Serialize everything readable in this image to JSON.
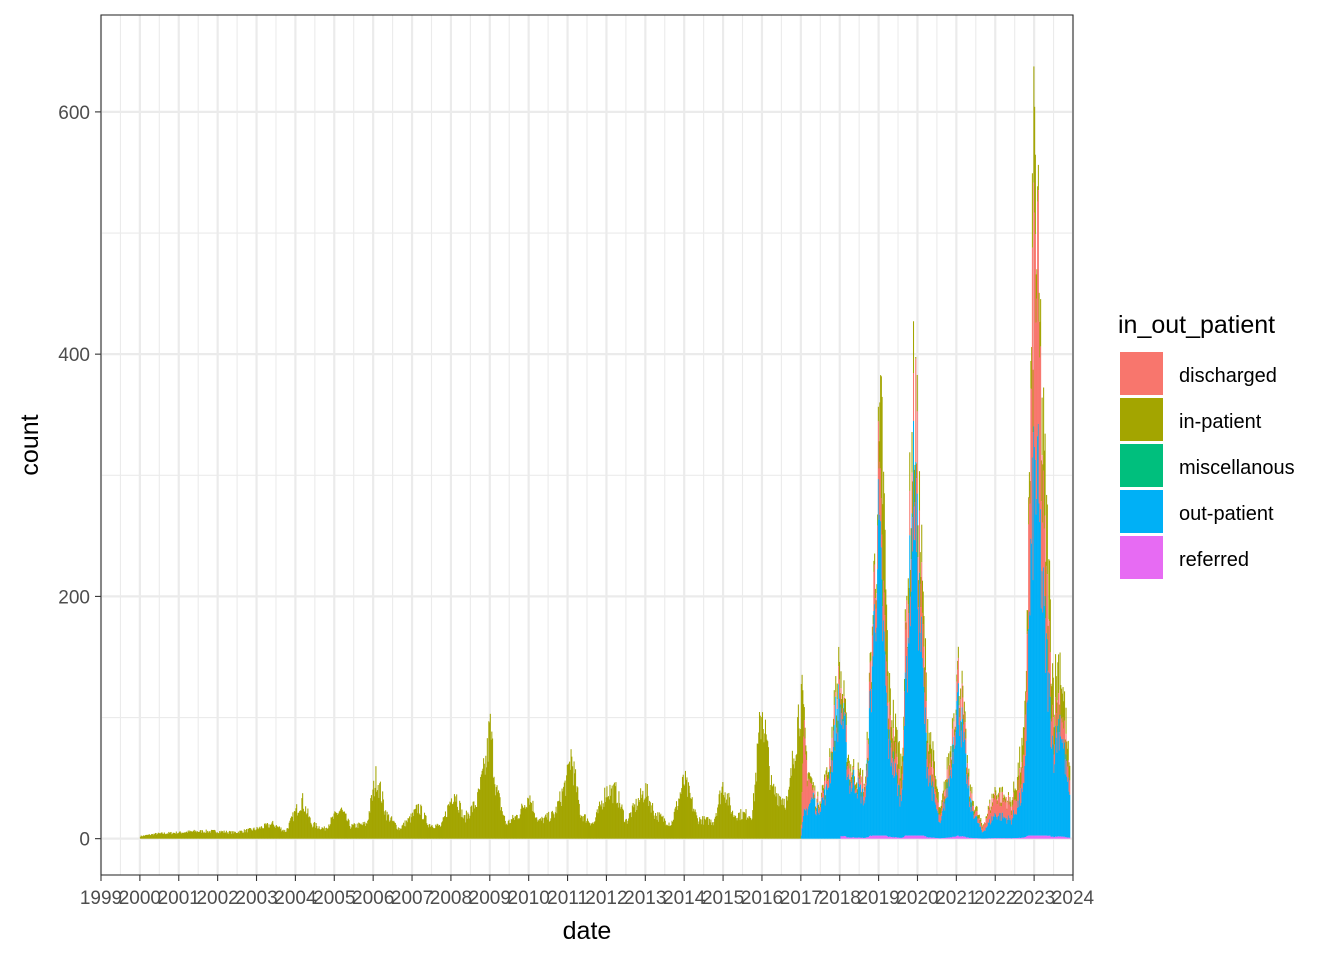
{
  "chart_data": {
    "type": "bar",
    "xlabel": "date",
    "ylabel": "count",
    "x_axis_kind": "date (weekly bins)",
    "xlim": [
      "1999-01-01",
      "2024-01-01"
    ],
    "x_ticks": [
      "1999",
      "2000",
      "2001",
      "2002",
      "2003",
      "2004",
      "2005",
      "2006",
      "2007",
      "2008",
      "2009",
      "2010",
      "2011",
      "2012",
      "2013",
      "2014",
      "2015",
      "2016",
      "2017",
      "2018",
      "2019",
      "2020",
      "2021",
      "2022",
      "2023",
      "2024"
    ],
    "ylim": [
      -30,
      680
    ],
    "y_ticks": [
      0,
      200,
      400,
      600
    ],
    "grid": true,
    "stacked": true,
    "legend": {
      "title": "in_out_patient",
      "placement": "right",
      "entries": [
        {
          "label": "discharged",
          "color": "#F8766D"
        },
        {
          "label": "in-patient",
          "color": "#A3A500"
        },
        {
          "label": "miscellanous",
          "color": "#00BF7D"
        },
        {
          "label": "out-patient",
          "color": "#00B0F6"
        },
        {
          "label": "referred",
          "color": "#E76BF3"
        }
      ]
    },
    "series_envelopes": [
      {
        "name": "in-patient",
        "note": "approximate stacked top of total (monthly)",
        "points": [
          [
            "2000-01",
            2
          ],
          [
            "2000-06",
            4
          ],
          [
            "2001-01",
            5
          ],
          [
            "2001-06",
            6
          ],
          [
            "2002-01",
            6
          ],
          [
            "2002-06",
            5
          ],
          [
            "2003-01",
            8
          ],
          [
            "2003-06",
            12
          ],
          [
            "2003-10",
            6
          ],
          [
            "2004-01",
            22
          ],
          [
            "2004-03",
            32
          ],
          [
            "2004-06",
            12
          ],
          [
            "2004-10",
            8
          ],
          [
            "2005-01",
            18
          ],
          [
            "2005-03",
            24
          ],
          [
            "2005-06",
            10
          ],
          [
            "2005-11",
            12
          ],
          [
            "2006-02",
            52
          ],
          [
            "2006-05",
            20
          ],
          [
            "2006-09",
            8
          ],
          [
            "2007-01",
            18
          ],
          [
            "2007-03",
            26
          ],
          [
            "2007-06",
            12
          ],
          [
            "2007-10",
            10
          ],
          [
            "2008-02",
            40
          ],
          [
            "2008-05",
            16
          ],
          [
            "2008-09",
            30
          ],
          [
            "2008-12",
            65
          ],
          [
            "2009-01",
            92
          ],
          [
            "2009-03",
            40
          ],
          [
            "2009-06",
            12
          ],
          [
            "2009-10",
            20
          ],
          [
            "2010-01",
            36
          ],
          [
            "2010-04",
            14
          ],
          [
            "2010-09",
            20
          ],
          [
            "2011-01",
            50
          ],
          [
            "2011-02",
            70
          ],
          [
            "2011-05",
            20
          ],
          [
            "2011-09",
            12
          ],
          [
            "2012-01",
            40
          ],
          [
            "2012-04",
            38
          ],
          [
            "2012-07",
            14
          ],
          [
            "2013-01",
            40
          ],
          [
            "2013-04",
            20
          ],
          [
            "2013-09",
            12
          ],
          [
            "2014-01",
            48
          ],
          [
            "2014-05",
            16
          ],
          [
            "2014-10",
            14
          ],
          [
            "2015-01",
            45
          ],
          [
            "2015-04",
            20
          ],
          [
            "2015-10",
            20
          ],
          [
            "2016-01",
            110
          ],
          [
            "2016-04",
            40
          ],
          [
            "2016-09",
            30
          ],
          [
            "2017-01",
            120
          ],
          [
            "2017-03",
            60
          ],
          [
            "2017-06",
            30
          ],
          [
            "2017-09",
            50
          ],
          [
            "2018-01",
            140
          ],
          [
            "2018-04",
            60
          ],
          [
            "2018-09",
            45
          ],
          [
            "2019-01",
            300
          ],
          [
            "2019-02",
            330
          ],
          [
            "2019-04",
            120
          ],
          [
            "2019-08",
            60
          ],
          [
            "2019-12",
            370
          ],
          [
            "2020-01",
            300
          ],
          [
            "2020-04",
            100
          ],
          [
            "2020-08",
            20
          ],
          [
            "2020-11",
            70
          ],
          [
            "2021-01",
            130
          ],
          [
            "2021-02",
            140
          ],
          [
            "2021-05",
            40
          ],
          [
            "2021-09",
            10
          ],
          [
            "2022-01",
            40
          ],
          [
            "2022-06",
            30
          ],
          [
            "2022-10",
            80
          ],
          [
            "2022-12",
            350
          ],
          [
            "2023-01",
            570
          ],
          [
            "2023-02",
            470
          ],
          [
            "2023-04",
            300
          ],
          [
            "2023-07",
            120
          ],
          [
            "2023-09",
            150
          ],
          [
            "2023-12",
            50
          ]
        ]
      },
      {
        "name": "discharged",
        "note": "approximate top of discharged+out-patient stack (monthly)",
        "points": [
          [
            "2017-01",
            0
          ],
          [
            "2017-02",
            90
          ],
          [
            "2017-05",
            60
          ],
          [
            "2018-01",
            190
          ],
          [
            "2018-05",
            80
          ],
          [
            "2018-09",
            40
          ],
          [
            "2019-01",
            290
          ],
          [
            "2019-04",
            100
          ],
          [
            "2019-08",
            40
          ],
          [
            "2019-12",
            390
          ],
          [
            "2020-01",
            270
          ],
          [
            "2020-04",
            80
          ],
          [
            "2020-08",
            15
          ],
          [
            "2020-11",
            60
          ],
          [
            "2021-01",
            125
          ],
          [
            "2021-02",
            130
          ],
          [
            "2021-05",
            35
          ],
          [
            "2021-09",
            8
          ],
          [
            "2022-01",
            50
          ],
          [
            "2022-06",
            25
          ],
          [
            "2022-10",
            60
          ],
          [
            "2022-12",
            330
          ],
          [
            "2023-01",
            480
          ],
          [
            "2023-02",
            460
          ],
          [
            "2023-04",
            240
          ],
          [
            "2023-07",
            90
          ],
          [
            "2023-09",
            120
          ],
          [
            "2023-12",
            40
          ]
        ]
      },
      {
        "name": "out-patient",
        "note": "approximate out-patient count (monthly)",
        "points": [
          [
            "2017-01",
            0
          ],
          [
            "2017-02",
            20
          ],
          [
            "2017-06",
            40
          ],
          [
            "2018-01",
            110
          ],
          [
            "2018-05",
            50
          ],
          [
            "2018-09",
            30
          ],
          [
            "2019-01",
            250
          ],
          [
            "2019-04",
            80
          ],
          [
            "2019-08",
            30
          ],
          [
            "2019-12",
            300
          ],
          [
            "2020-01",
            220
          ],
          [
            "2020-04",
            60
          ],
          [
            "2020-08",
            10
          ],
          [
            "2020-11",
            50
          ],
          [
            "2021-01",
            110
          ],
          [
            "2021-02",
            110
          ],
          [
            "2021-05",
            30
          ],
          [
            "2021-09",
            5
          ],
          [
            "2022-01",
            20
          ],
          [
            "2022-06",
            15
          ],
          [
            "2022-10",
            40
          ],
          [
            "2022-12",
            220
          ],
          [
            "2023-01",
            300
          ],
          [
            "2023-02",
            290
          ],
          [
            "2023-04",
            180
          ],
          [
            "2023-07",
            70
          ],
          [
            "2023-09",
            100
          ],
          [
            "2023-12",
            30
          ]
        ]
      }
    ]
  }
}
